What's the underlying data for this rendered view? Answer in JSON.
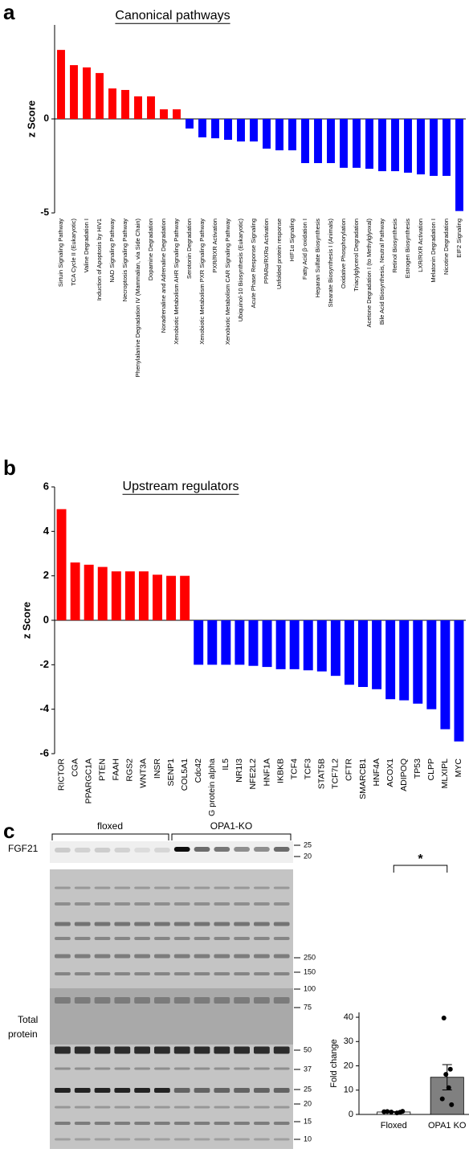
{
  "chart_data": [
    {
      "type": "bar",
      "panel_label": "a",
      "title": "Canonical pathways",
      "y_label": "z Score",
      "categories": [
        "Sirtuin Signaling Pathway",
        "TCA Cycle II (Eukaryotic)",
        "Valine Degradation I",
        "Induction of Apoptosis by HIV1",
        "NAD Signaling Pathway",
        "Necroptosis Signaling Pathway",
        "Phenylalanine Degradation IV (Mammalian, via Side Chain)",
        "Dopamine Degradation",
        "Noradrenaline and Adrenaline Degradation",
        "Xenobiotic Metabolism AHR Signaling Pathway",
        "Serotonin Degradation",
        "Xenobiotic Metabolism PXR Signaling Pathway",
        "PXR/RXR Activation",
        "Xenobiotic Metabolism CAR Signaling Pathway",
        "Ubiquinol-10 Biosynthesis (Eukaryotic)",
        "Acute Phase Response Signaling",
        "PPARα/RXRα Activation",
        "Unfolded protein response",
        "HIF1α Signaling",
        "Fatty Acid β-oxidation I",
        "Heparan Sulfate Biosynthesis",
        "Stearate Biosynthesis I (Animals)",
        "Oxidative Phosphorylation",
        "Triacylglycerol Degradation",
        "Acetone Degradation I (to Methylglyoxal)",
        "Bile Acid Biosynthesis, Neutral Pathway",
        "Retinol Biosynthesis",
        "Estrogen Biosynthesis",
        "LXR/RXR Activation",
        "Melatonin Degradation I",
        "Nicotine Degradation",
        "EIF2 Signaling"
      ],
      "values": [
        3.67,
        2.86,
        2.74,
        2.44,
        1.62,
        1.54,
        1.2,
        1.2,
        0.51,
        0.51,
        -0.51,
        -0.98,
        -1.03,
        -1.11,
        -1.2,
        -1.2,
        -1.58,
        -1.67,
        -1.67,
        -2.35,
        -2.35,
        -2.35,
        -2.6,
        -2.6,
        -2.65,
        -2.78,
        -2.78,
        -2.86,
        -2.95,
        -3.03,
        -3.03,
        -4.9
      ],
      "color_positive": "#ff0000",
      "color_negative": "#0000ff",
      "ylim": [
        -5,
        5
      ],
      "yticks": [
        -5,
        0
      ]
    },
    {
      "type": "bar",
      "panel_label": "b",
      "title": "Upstream regulators",
      "y_label": "z Score",
      "categories": [
        "RICTOR",
        "CGA",
        "PPARGC1A",
        "PTEN",
        "FAAH",
        "RGS2",
        "WNT3A",
        "INSR",
        "SENP1",
        "COL5A1",
        "Cdc42",
        "G protein alpha",
        "IL5",
        "NR1I3",
        "NFE2L2",
        "HNF1A",
        "IKBKB",
        "TCF4",
        "TCF3",
        "STAT5B",
        "TCF7L2",
        "CFTR",
        "SMARCB1",
        "HNF4A",
        "ACOX1",
        "ADIPOQ",
        "TP53",
        "CLPP",
        "MLXIPL",
        "MYC"
      ],
      "values": [
        5.0,
        2.6,
        2.5,
        2.4,
        2.2,
        2.2,
        2.2,
        2.05,
        2.0,
        2.0,
        -2.0,
        -2.0,
        -2.0,
        -2.0,
        -2.05,
        -2.1,
        -2.2,
        -2.2,
        -2.25,
        -2.3,
        -2.5,
        -2.9,
        -3.0,
        -3.1,
        -3.55,
        -3.6,
        -3.75,
        -4.0,
        -4.9,
        -5.45
      ],
      "color_positive": "#ff0000",
      "color_negative": "#0000ff",
      "ylim": [
        -6,
        6
      ],
      "yticks": [
        -6,
        -4,
        -2,
        0,
        2,
        4,
        6
      ]
    },
    {
      "type": "bar",
      "y_label": "Fold change",
      "categories": [
        "Floxed",
        "OPA1 KO"
      ],
      "values": [
        1.0,
        15.3
      ],
      "errors": [
        0.15,
        5.2
      ],
      "points": [
        [
          1.2,
          0.9,
          1.0,
          0.6,
          1.1,
          1.3
        ],
        [
          39.7,
          18.6,
          16.5,
          11.0,
          6.4,
          4.0
        ]
      ],
      "colors": [
        "#ffffff",
        "#808080"
      ],
      "point_color": "#000000",
      "annotation": "*",
      "ylim": [
        0,
        42
      ],
      "yticks": [
        0,
        10,
        20,
        30,
        40
      ]
    }
  ],
  "blot": {
    "panel_label": "c",
    "group_labels": [
      "floxed",
      "OPA1-KO"
    ],
    "fgf21_label": "FGF21",
    "total_protein_label": [
      "Total",
      "protein"
    ],
    "fgf21_markers": [
      "25",
      "20"
    ],
    "total_markers": [
      "250",
      "150",
      "100",
      "75",
      "50",
      "37",
      "25",
      "20",
      "15",
      "10"
    ]
  }
}
